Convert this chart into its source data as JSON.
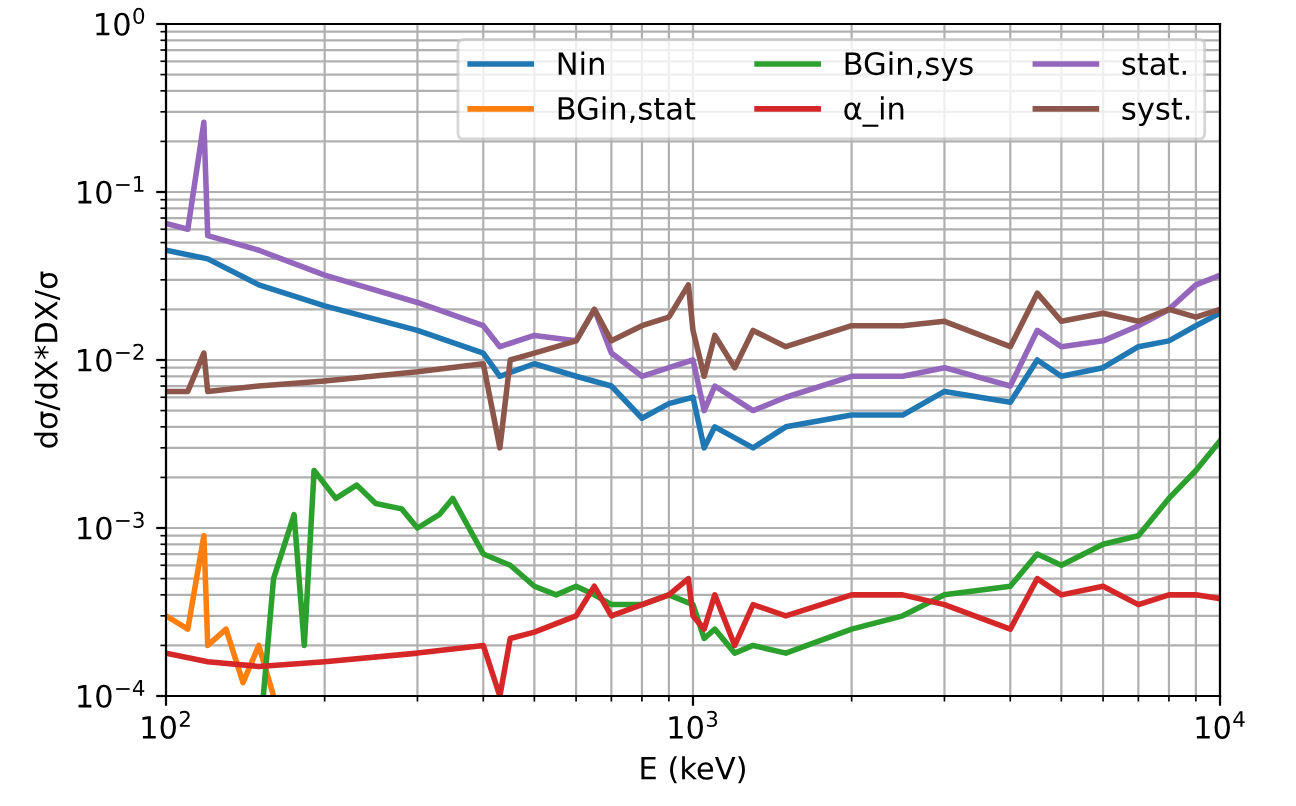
{
  "chart_data": {
    "type": "line",
    "xlabel": "E (keV)",
    "ylabel": "dσ/dX*DX/σ",
    "log": "xy",
    "grid": true,
    "legend": "top right",
    "xlim": [
      100,
      10000
    ],
    "ylim": [
      0.0001,
      1
    ],
    "xticks": [
      {
        "value": 100,
        "label": "10$^{2}$"
      },
      {
        "value": 1000,
        "label": "10$^{3}$"
      },
      {
        "value": 10000,
        "label": "10$^{4}$"
      }
    ],
    "yticks": [
      {
        "value": 0.0001,
        "label": "10$^{−4}$"
      },
      {
        "value": 0.001,
        "label": "10$^{−3}$"
      },
      {
        "value": 0.01,
        "label": "10$^{−2}$"
      },
      {
        "value": 0.1,
        "label": "10$^{−1}$"
      },
      {
        "value": 1,
        "label": "10$^{0}$"
      }
    ],
    "series": [
      {
        "name": "Nin",
        "color": "#1f77b4",
        "x": [
          100,
          120,
          150,
          200,
          300,
          400,
          430,
          500,
          600,
          700,
          800,
          900,
          1000,
          1050,
          1100,
          1300,
          1500,
          2000,
          2500,
          3000,
          4000,
          4500,
          5000,
          6000,
          7000,
          8000,
          9000,
          10000
        ],
        "values": [
          0.045,
          0.04,
          0.028,
          0.021,
          0.015,
          0.011,
          0.008,
          0.0095,
          0.008,
          0.007,
          0.0045,
          0.0055,
          0.006,
          0.003,
          0.004,
          0.003,
          0.004,
          0.0047,
          0.0047,
          0.0065,
          0.0056,
          0.01,
          0.008,
          0.009,
          0.012,
          0.013,
          0.016,
          0.019
        ]
      },
      {
        "name": "BGin,stat",
        "color": "#ff7f0e",
        "x": [
          100,
          110,
          118,
          120,
          130,
          140,
          150,
          160
        ],
        "values": [
          0.0003,
          0.00025,
          0.0009,
          0.0002,
          0.00025,
          0.00012,
          0.0002,
          0.0001
        ]
      },
      {
        "name": "BGin,sys",
        "color": "#2ca02c",
        "x": [
          153,
          160,
          175,
          183,
          191,
          210,
          230,
          250,
          280,
          300,
          330,
          350,
          400,
          450,
          500,
          550,
          600,
          650,
          700,
          800,
          900,
          1000,
          1050,
          1100,
          1200,
          1300,
          1500,
          2000,
          2500,
          3000,
          4000,
          4500,
          5000,
          6000,
          7000,
          8000,
          9000,
          10000
        ],
        "values": [
          0.0001,
          0.0005,
          0.0012,
          0.0002,
          0.0022,
          0.0015,
          0.0018,
          0.0014,
          0.0013,
          0.001,
          0.0012,
          0.0015,
          0.0007,
          0.0006,
          0.00045,
          0.0004,
          0.00045,
          0.0004,
          0.00035,
          0.00035,
          0.0004,
          0.00035,
          0.00022,
          0.00025,
          0.00018,
          0.0002,
          0.00018,
          0.00025,
          0.0003,
          0.0004,
          0.00045,
          0.0007,
          0.0006,
          0.0008,
          0.0009,
          0.0015,
          0.0022,
          0.0033
        ]
      },
      {
        "name": "α_in",
        "color": "#d62728",
        "x": [
          100,
          120,
          150,
          200,
          300,
          400,
          430,
          450,
          500,
          600,
          650,
          700,
          800,
          900,
          980,
          1000,
          1050,
          1100,
          1200,
          1300,
          1500,
          2000,
          2500,
          3000,
          4000,
          4500,
          5000,
          6000,
          7000,
          8000,
          9000,
          10000
        ],
        "values": [
          0.00018,
          0.00016,
          0.00015,
          0.00016,
          0.00018,
          0.0002,
          0.0001,
          0.00022,
          0.00024,
          0.0003,
          0.00045,
          0.0003,
          0.00035,
          0.0004,
          0.0005,
          0.0003,
          0.00025,
          0.0004,
          0.0002,
          0.00035,
          0.0003,
          0.0004,
          0.0004,
          0.00035,
          0.00025,
          0.0005,
          0.0004,
          0.00045,
          0.00035,
          0.0004,
          0.0004,
          0.00038
        ]
      },
      {
        "name": "stat.",
        "color": "#9467bd",
        "x": [
          100,
          110,
          118,
          120,
          150,
          200,
          300,
          400,
          430,
          500,
          600,
          650,
          700,
          800,
          900,
          1000,
          1050,
          1100,
          1300,
          1500,
          2000,
          2500,
          3000,
          4000,
          4500,
          5000,
          6000,
          7000,
          8000,
          9000,
          10000
        ],
        "values": [
          0.065,
          0.06,
          0.26,
          0.055,
          0.045,
          0.032,
          0.022,
          0.016,
          0.012,
          0.014,
          0.013,
          0.02,
          0.011,
          0.008,
          0.009,
          0.01,
          0.005,
          0.007,
          0.005,
          0.006,
          0.008,
          0.008,
          0.009,
          0.007,
          0.015,
          0.012,
          0.013,
          0.016,
          0.02,
          0.028,
          0.032
        ]
      },
      {
        "name": "syst.",
        "color": "#8c564b",
        "x": [
          100,
          110,
          118,
          120,
          150,
          200,
          300,
          400,
          430,
          450,
          500,
          600,
          650,
          700,
          800,
          900,
          980,
          1000,
          1050,
          1100,
          1200,
          1300,
          1500,
          2000,
          2500,
          3000,
          4000,
          4500,
          5000,
          6000,
          7000,
          8000,
          9000,
          10000
        ],
        "values": [
          0.0065,
          0.0065,
          0.011,
          0.0065,
          0.007,
          0.0075,
          0.0085,
          0.0095,
          0.003,
          0.01,
          0.011,
          0.013,
          0.02,
          0.013,
          0.016,
          0.018,
          0.028,
          0.015,
          0.008,
          0.014,
          0.009,
          0.015,
          0.012,
          0.016,
          0.016,
          0.017,
          0.012,
          0.025,
          0.017,
          0.019,
          0.017,
          0.02,
          0.018,
          0.02
        ]
      }
    ]
  }
}
